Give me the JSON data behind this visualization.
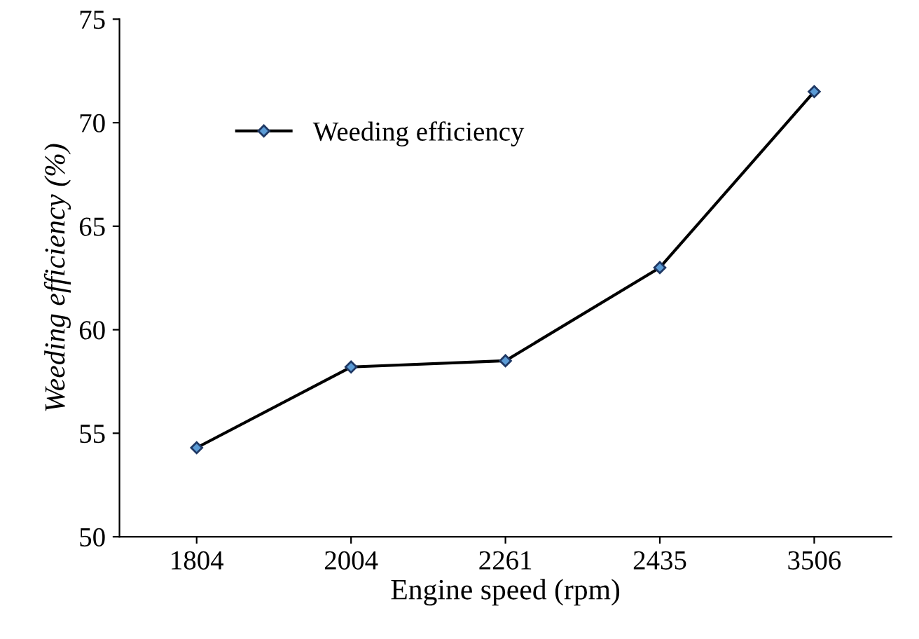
{
  "chart_data": {
    "type": "line",
    "xlabel": "Engine speed (rpm)",
    "ylabel": "Weeding efficiency (%)",
    "categories": [
      "1804",
      "2004",
      "2261",
      "2435",
      "3506"
    ],
    "series": [
      {
        "name": "Weeding efficiency",
        "color": "#000000",
        "values": [
          54.3,
          58.2,
          58.5,
          63.0,
          71.5
        ]
      }
    ],
    "ylim": [
      50,
      75
    ],
    "yticks": [
      50,
      55,
      60,
      65,
      70,
      75
    ],
    "grid": false,
    "legend": "top left",
    "marker": "diamond",
    "line_style": "solid"
  }
}
